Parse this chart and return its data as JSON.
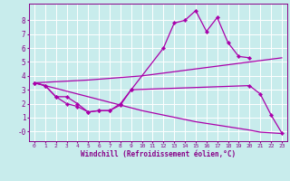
{
  "bg_color": "#c8ecec",
  "line_color": "#aa00aa",
  "grid_color": "#ffffff",
  "xlabel": "Windchill (Refroidissement éolien,°C)",
  "xlim": [
    -0.5,
    23.5
  ],
  "ylim": [
    -0.7,
    9.2
  ],
  "xticks": [
    0,
    1,
    2,
    3,
    4,
    5,
    6,
    7,
    8,
    9,
    10,
    11,
    12,
    13,
    14,
    15,
    16,
    17,
    18,
    19,
    20,
    21,
    22,
    23
  ],
  "yticks": [
    0,
    1,
    2,
    3,
    4,
    5,
    6,
    7,
    8
  ],
  "ytick_labels": [
    "-0",
    "1",
    "2",
    "3",
    "4",
    "5",
    "6",
    "7",
    "8"
  ],
  "curve1_x": [
    0,
    1,
    2,
    3,
    4,
    5,
    6,
    7,
    8,
    9,
    12,
    13,
    14,
    15,
    16,
    17,
    18,
    19,
    20
  ],
  "curve1_y": [
    3.5,
    3.3,
    2.5,
    2.0,
    1.8,
    1.4,
    1.5,
    1.5,
    2.0,
    3.0,
    6.0,
    7.8,
    8.0,
    8.7,
    7.2,
    8.2,
    6.4,
    5.4,
    5.3
  ],
  "curve2_x": [
    0,
    5,
    10,
    15,
    20,
    23
  ],
  "curve2_y": [
    3.5,
    3.7,
    4.0,
    4.5,
    5.0,
    5.3
  ],
  "curve3_x": [
    0,
    5,
    10,
    15,
    20,
    21,
    22,
    23
  ],
  "curve3_y": [
    3.5,
    2.5,
    1.5,
    0.7,
    0.1,
    -0.05,
    -0.1,
    -0.15
  ],
  "curve4_x": [
    0,
    1,
    2,
    3,
    4,
    5,
    6,
    7,
    8,
    9,
    20,
    21,
    22,
    23
  ],
  "curve4_y": [
    3.5,
    3.3,
    2.5,
    2.5,
    2.0,
    1.4,
    1.5,
    1.5,
    1.9,
    3.0,
    3.3,
    2.7,
    1.2,
    -0.1
  ]
}
